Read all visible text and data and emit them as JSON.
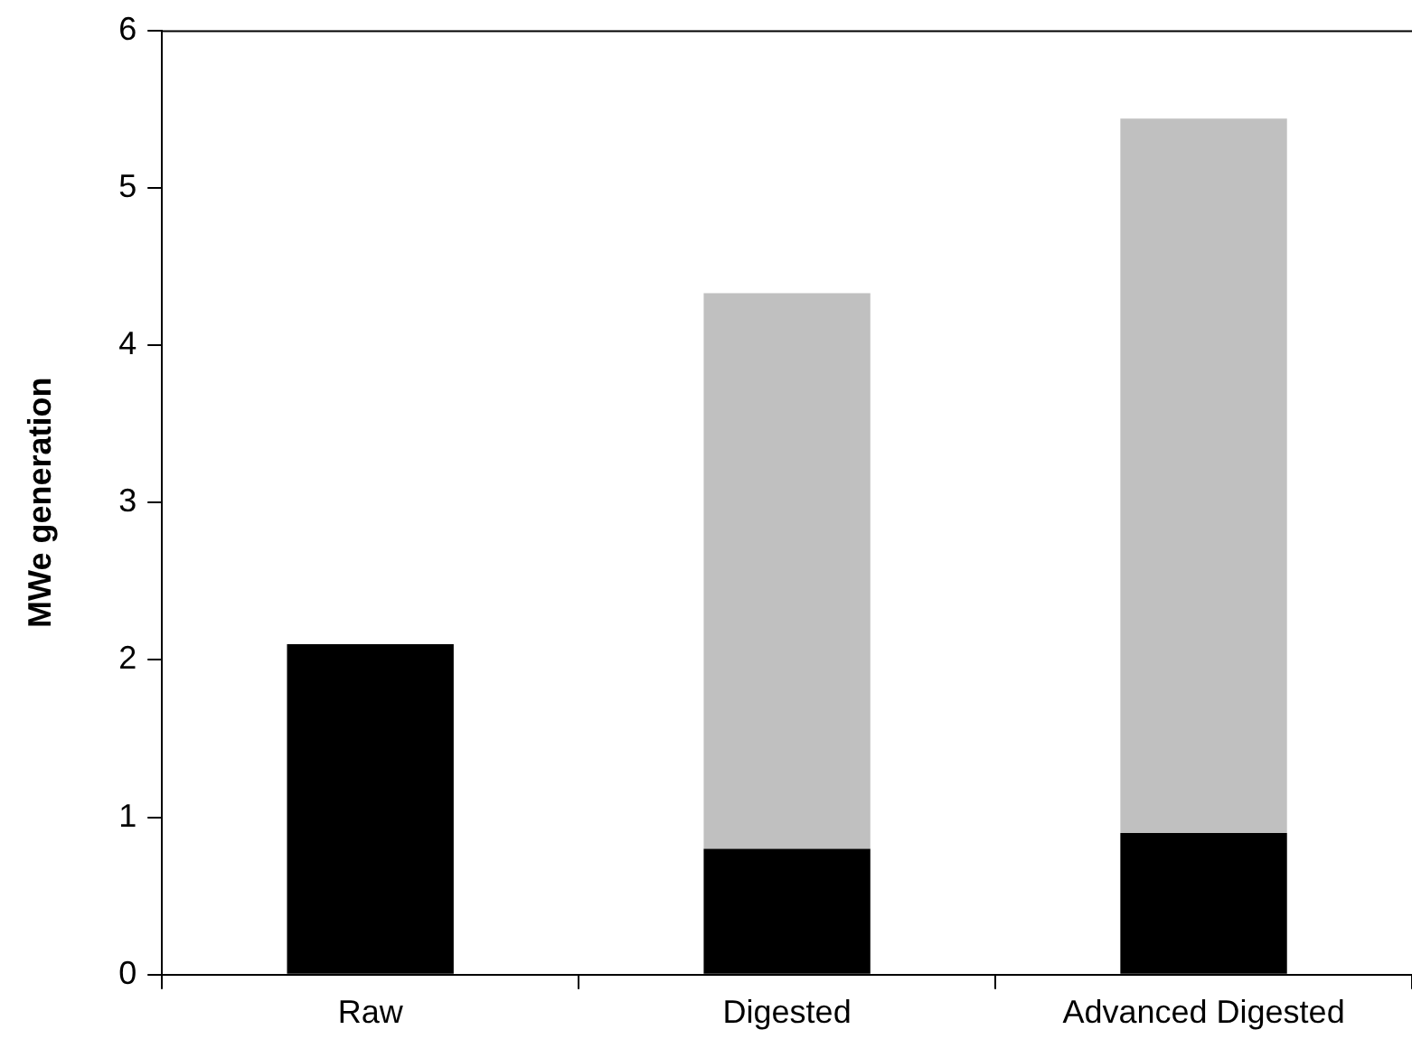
{
  "chart_data": {
    "type": "bar",
    "ylabel": "MWe generation",
    "categories": [
      "Raw",
      "Digested",
      "Advanced Digested"
    ],
    "stacked": true,
    "series": [
      {
        "color": "#000000",
        "values": [
          2.1,
          0.8,
          0.9
        ]
      },
      {
        "color": "#c0c0c0",
        "values": [
          null,
          3.53,
          4.54
        ]
      }
    ],
    "ylim": [
      0,
      6
    ],
    "yticks": [
      0,
      1,
      2,
      3,
      4,
      5,
      6
    ],
    "grid": false,
    "legend": false
  }
}
